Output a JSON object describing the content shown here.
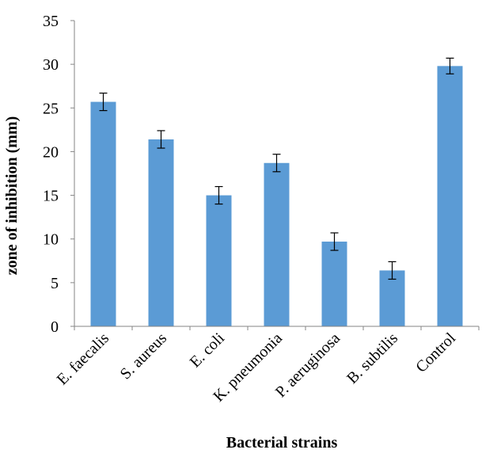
{
  "chart_data": {
    "type": "bar",
    "title": "",
    "xlabel": "Bacterial strains",
    "ylabel": "zone of inhibition (mm)",
    "categories": [
      "E. faecalis",
      "S. aureus",
      "E. coli",
      "K. pneumonia",
      "P. aeruginosa",
      "B. subtilis",
      "Control"
    ],
    "values": [
      25.7,
      21.4,
      15.0,
      18.7,
      9.7,
      6.4,
      29.8
    ],
    "error": [
      1.0,
      1.0,
      1.0,
      1.0,
      1.0,
      1.0,
      0.9
    ],
    "ylim": [
      0,
      35
    ],
    "yticks": [
      0,
      5,
      10,
      15,
      20,
      25,
      30,
      35
    ],
    "grid": false,
    "bar_color": "#5b9bd5",
    "axis_color": "#868686"
  }
}
